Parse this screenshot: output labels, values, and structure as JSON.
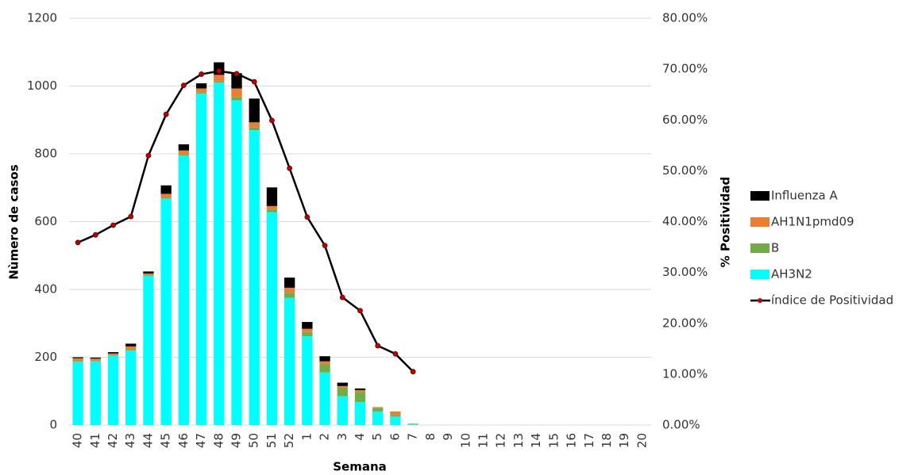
{
  "chart_data": {
    "type": "bar",
    "stacked": true,
    "y_label": "Nùmero de casos",
    "y2_label": "% Positividad",
    "x_label": "Semana",
    "categories": [
      "40",
      "41",
      "42",
      "43",
      "44",
      "45",
      "46",
      "47",
      "48",
      "49",
      "50",
      "51",
      "52",
      "1",
      "2",
      "3",
      "4",
      "5",
      "6",
      "7",
      "8",
      "9",
      "10",
      "11",
      "12",
      "13",
      "14",
      "15",
      "16",
      "17",
      "18",
      "19",
      "20"
    ],
    "series": [
      {
        "name": "Influenza A",
        "color": "#000000",
        "values": [
          3,
          3,
          4,
          8,
          6,
          25,
          18,
          15,
          37,
          45,
          70,
          55,
          30,
          20,
          15,
          10,
          5,
          0,
          0,
          0,
          0,
          0,
          0,
          0,
          0,
          0,
          0,
          0,
          0,
          0,
          0,
          0,
          0
        ]
      },
      {
        "name": "AH1N1pmd09",
        "color": "#ed7d31",
        "values": [
          8,
          7,
          5,
          10,
          5,
          12,
          12,
          12,
          20,
          25,
          15,
          10,
          15,
          10,
          8,
          5,
          5,
          3,
          10,
          0,
          0,
          0,
          0,
          0,
          0,
          0,
          0,
          0,
          0,
          0,
          0,
          0,
          0
        ]
      },
      {
        "name": "B",
        "color": "#70ad47",
        "values": [
          2,
          1,
          1,
          2,
          2,
          2,
          3,
          3,
          3,
          10,
          8,
          8,
          15,
          12,
          25,
          25,
          30,
          10,
          5,
          2,
          0,
          0,
          0,
          0,
          0,
          0,
          0,
          0,
          0,
          0,
          0,
          0,
          0
        ]
      },
      {
        "name": "AH3N2",
        "color": "#00ffff",
        "values": [
          187,
          188,
          205,
          220,
          440,
          668,
          795,
          978,
          1010,
          958,
          870,
          628,
          375,
          262,
          155,
          85,
          68,
          40,
          25,
          2,
          0,
          0,
          0,
          0,
          0,
          0,
          0,
          0,
          0,
          0,
          0,
          0,
          0
        ]
      },
      {
        "name": "índice de Positividad",
        "type": "line",
        "axis": "y2",
        "color": "#000000",
        "marker_color": "#c00000",
        "values": [
          35.9,
          37.4,
          39.3,
          41.0,
          53.0,
          61.1,
          66.8,
          69.0,
          69.6,
          69.1,
          67.5,
          59.9,
          50.5,
          40.9,
          35.3,
          25.1,
          22.5,
          15.6,
          14.0,
          10.5,
          null,
          null,
          null,
          null,
          null,
          null,
          null,
          null,
          null,
          null,
          null,
          null,
          null
        ]
      }
    ],
    "ylim": [
      0,
      1200
    ],
    "yticks": [
      0,
      200,
      400,
      600,
      800,
      1000,
      1200
    ],
    "y2lim": [
      0,
      80
    ],
    "y2ticks": [
      {
        "value": 0,
        "label": "0.00%"
      },
      {
        "value": 10,
        "label": "10.00%"
      },
      {
        "value": 20,
        "label": "20.00%"
      },
      {
        "value": 30,
        "label": "30.00%"
      },
      {
        "value": 40,
        "label": "40.00%"
      },
      {
        "value": 50,
        "label": "50.00%"
      },
      {
        "value": 60,
        "label": "60.00%"
      },
      {
        "value": 70,
        "label": "70.00%"
      },
      {
        "value": 80,
        "label": "80.00%"
      }
    ],
    "grid": true,
    "legend": "right"
  }
}
